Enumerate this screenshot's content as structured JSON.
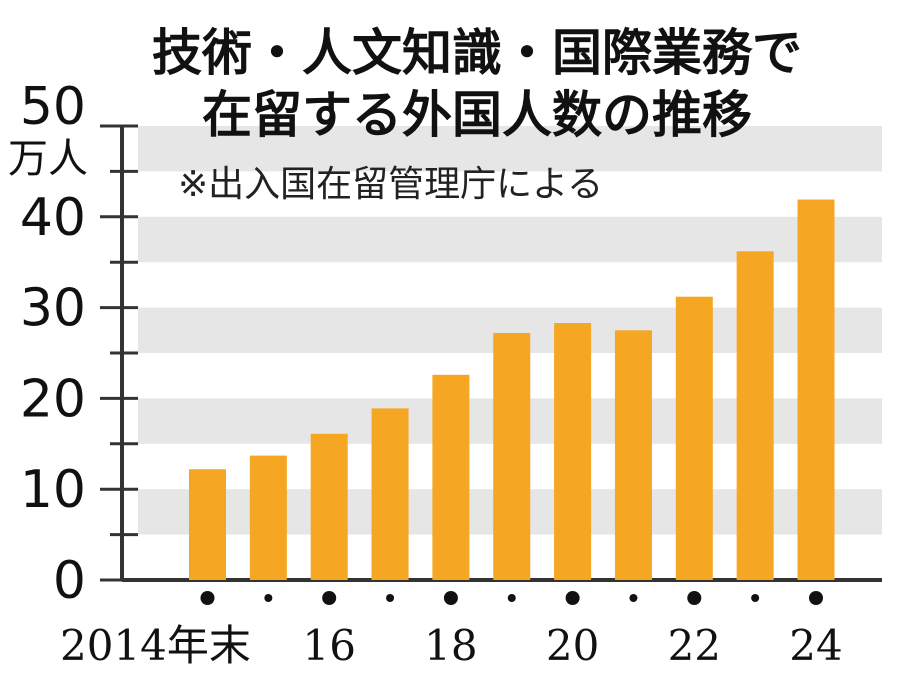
{
  "chart_data": {
    "type": "bar",
    "title": [
      "技術・人文知識・国際業務で",
      "在留する外国人数の推移"
    ],
    "note": "※出入国在留管理庁による",
    "ylabel": "万人",
    "ylim": [
      0,
      50
    ],
    "yticks": [
      "0",
      "10",
      "20",
      "30",
      "40",
      "50"
    ],
    "categories": [
      "2014",
      "2015",
      "2016",
      "2017",
      "2018",
      "2019",
      "2020",
      "2021",
      "2022",
      "2023",
      "2024"
    ],
    "xtick_labels": [
      "2014年末",
      "",
      "16",
      "",
      "18",
      "",
      "20",
      "",
      "22",
      "",
      "24"
    ],
    "values": [
      12.2,
      13.7,
      16.1,
      18.9,
      22.6,
      27.2,
      28.3,
      27.5,
      31.2,
      36.2,
      41.9
    ],
    "grid": "horizontal bands",
    "bar_color": "#F5A623",
    "band_color": "#E6E6E6",
    "axis_color": "#333333"
  }
}
